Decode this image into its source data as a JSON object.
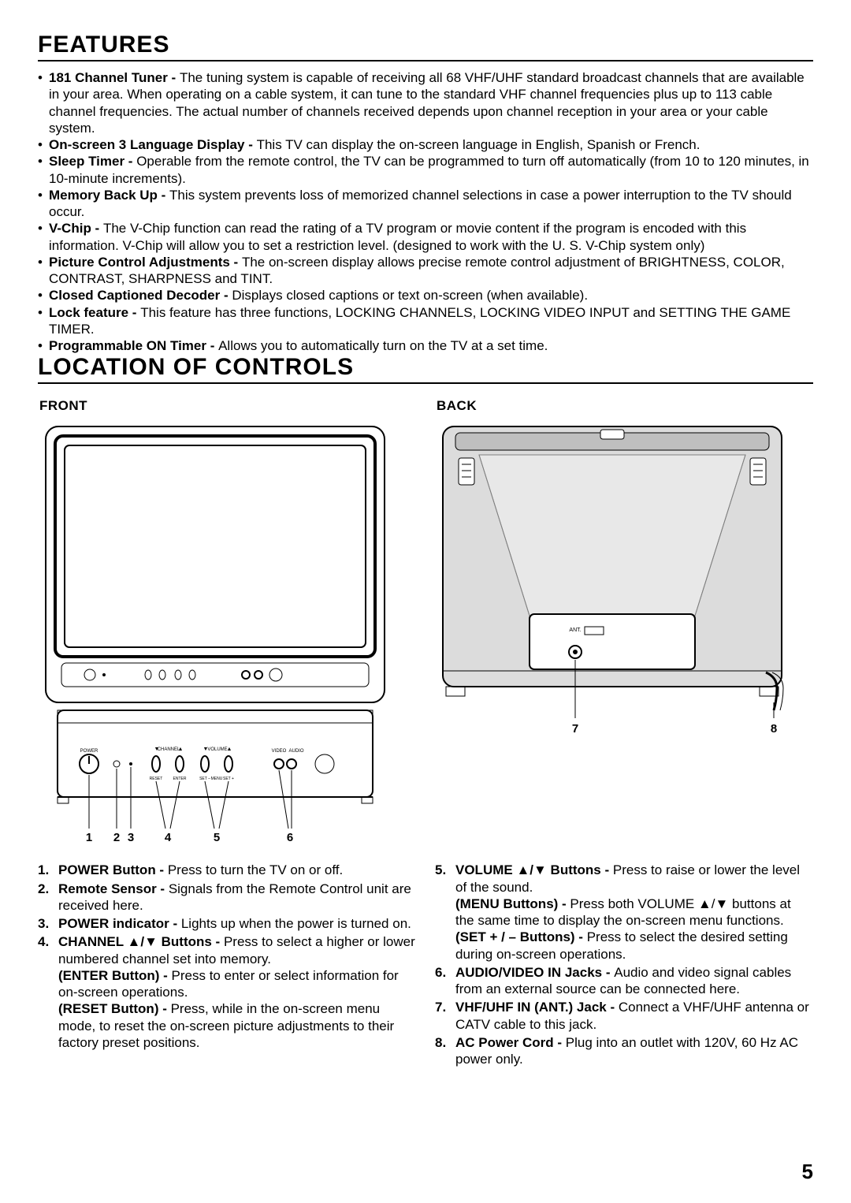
{
  "page_number": "5",
  "headings": {
    "features": "FEATURES",
    "location_of_controls": "LOCATION OF CONTROLS",
    "front": "FRONT",
    "back": "BACK"
  },
  "features": [
    {
      "title": "181 Channel Tuner - ",
      "text": "The tuning system is capable of receiving all 68 VHF/UHF standard broadcast channels that are available in your area. When operating on a cable system, it can tune to the standard VHF channel frequencies plus up to 113 cable channel frequencies. The actual number of channels received depends upon channel reception in your area or your cable system."
    },
    {
      "title": "On-screen 3 Language Display - ",
      "text": "This TV can display the on-screen language in English, Spanish or French."
    },
    {
      "title": "Sleep Timer - ",
      "text": "Operable from the remote control, the TV can be programmed to turn off automatically (from 10 to 120 minutes, in 10-minute increments)."
    },
    {
      "title": "Memory Back Up - ",
      "text": "This system prevents loss of memorized channel selections in case a power interruption to the TV should occur."
    },
    {
      "title": "V-Chip - ",
      "text": "The V-Chip function can read the rating of a TV program or movie content if the program is encoded with this information. V-Chip will allow you to set a restriction level. (designed to work with the U. S. V-Chip system only)"
    },
    {
      "title": "Picture Control Adjustments - ",
      "text": "The on-screen display allows precise remote control adjustment of BRIGHTNESS, COLOR, CONTRAST, SHARPNESS and TINT."
    },
    {
      "title": "Closed Captioned Decoder - ",
      "text": "Displays closed captions or text on-screen (when available)."
    },
    {
      "title": "Lock feature - ",
      "text": "This feature has three functions, LOCKING CHANNELS, LOCKING VIDEO INPUT and SETTING THE GAME TIMER."
    },
    {
      "title": "Programmable ON Timer - ",
      "text": "Allows you to automatically turn on the TV at a set time."
    }
  ],
  "front_labels": {
    "l1": "1",
    "l2": "2",
    "l3": "3",
    "l4": "4",
    "l5": "5",
    "l6": "6"
  },
  "back_labels": {
    "l7": "7",
    "l8": "8"
  },
  "front_svg_text": {
    "power": "POWER",
    "channel": "CHANNEL",
    "volume": "VOLUME",
    "video": "VIDEO",
    "audio": "AUDIO",
    "reset": "RESET",
    "setminus": "SET –",
    "setplus": "SET +",
    "menu": "MENU",
    "enter": "ENTER"
  },
  "back_svg_text": {
    "ant": "ANT."
  },
  "controls_left": [
    {
      "num": "1.",
      "segments": [
        {
          "bold": "POWER Button - ",
          "text": "Press to turn the TV on or off."
        }
      ]
    },
    {
      "num": "2.",
      "segments": [
        {
          "bold": "Remote Sensor - ",
          "text": "Signals from the Remote Control unit are received here."
        }
      ]
    },
    {
      "num": "3.",
      "segments": [
        {
          "bold": "POWER indicator - ",
          "text": "Lights up when the power is turned on."
        }
      ]
    },
    {
      "num": "4.",
      "segments": [
        {
          "bold": "CHANNEL ▲/▼ Buttons - ",
          "text": "Press to select a higher or lower numbered channel set into memory."
        },
        {
          "bold": "(ENTER Button) - ",
          "text": "Press to enter or select information for on-screen operations."
        },
        {
          "bold": "(RESET Button) - ",
          "text": "Press, while in the on-screen menu mode, to reset the on-screen picture adjustments to their factory preset positions."
        }
      ]
    }
  ],
  "controls_right": [
    {
      "num": "5.",
      "segments": [
        {
          "bold": "VOLUME ▲/▼ Buttons - ",
          "text": "Press to raise or lower the level of the sound."
        },
        {
          "bold": "(MENU Buttons) - ",
          "text": "Press both VOLUME ▲/▼ buttons at the same time to display the on-screen menu functions."
        },
        {
          "bold": "(SET + / – Buttons) - ",
          "text": "Press to select the desired setting during on-screen operations."
        }
      ]
    },
    {
      "num": "6.",
      "segments": [
        {
          "bold": "AUDIO/VIDEO IN Jacks - ",
          "text": "Audio and video signal cables from an external source can be connected here."
        }
      ]
    },
    {
      "num": "7.",
      "segments": [
        {
          "bold": "VHF/UHF IN (ANT.) Jack - ",
          "text": "Connect a VHF/UHF antenna or CATV cable to this jack."
        }
      ]
    },
    {
      "num": "8.",
      "segments": [
        {
          "bold": "AC Power Cord - ",
          "text": "Plug into an outlet with 120V, 60 Hz AC power only."
        }
      ]
    }
  ]
}
